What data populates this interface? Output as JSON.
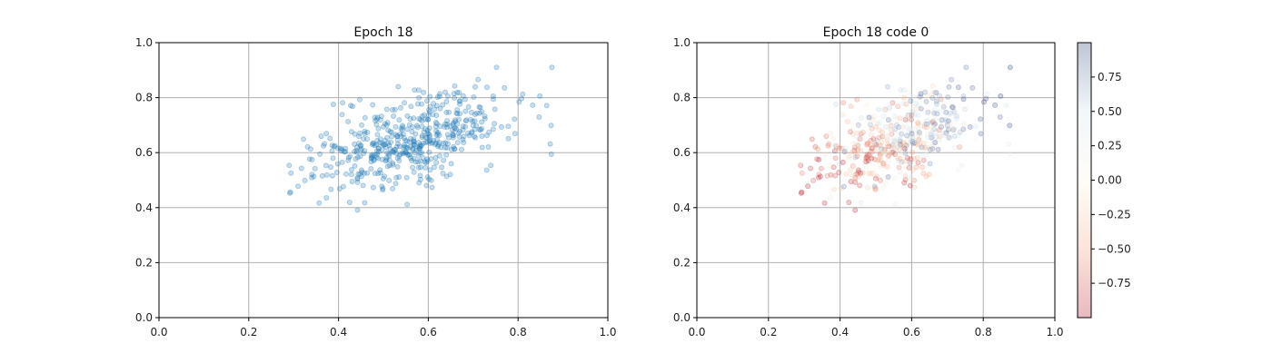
{
  "chart_data": [
    {
      "type": "scatter",
      "title": "Epoch 18",
      "xlabel": "",
      "ylabel": "",
      "xlim": [
        0,
        1
      ],
      "ylim": [
        0,
        1
      ],
      "xticks": [
        "0.0",
        "0.2",
        "0.4",
        "0.6",
        "0.8",
        "1.0"
      ],
      "yticks": [
        "0.0",
        "0.2",
        "0.4",
        "0.6",
        "0.8",
        "1.0"
      ],
      "grid": true,
      "point_color": "#1f77b4",
      "point_alpha": 0.25,
      "distribution": {
        "n_points": 500,
        "x_mean": 0.56,
        "x_std": 0.11,
        "y_mean": 0.64,
        "y_std": 0.09,
        "correlation": 0.5,
        "seed": 18
      }
    },
    {
      "type": "scatter",
      "title": "Epoch 18 code 0",
      "xlabel": "",
      "ylabel": "",
      "xlim": [
        0,
        1
      ],
      "ylim": [
        0,
        1
      ],
      "xticks": [
        "0.0",
        "0.2",
        "0.4",
        "0.6",
        "0.8",
        "1.0"
      ],
      "yticks": [
        "0.0",
        "0.2",
        "0.4",
        "0.6",
        "0.8",
        "1.0"
      ],
      "grid": true,
      "colormap": "RdYlBu (reversed-style: red negative, cream zero, blue positive)",
      "colorbar": {
        "range": [
          -1,
          1
        ],
        "ticks": [
          "0.75",
          "0.50",
          "0.25",
          "0.00",
          "−0.25",
          "−0.50",
          "−0.75"
        ],
        "tick_values": [
          0.75,
          0.5,
          0.25,
          0,
          -0.25,
          -0.5,
          -0.75
        ],
        "colors": [
          "#b2182b",
          "#f4a582",
          "#fff7e6",
          "#d1e5f0",
          "#2c3e7a"
        ]
      },
      "point_alpha": 0.25
    }
  ]
}
